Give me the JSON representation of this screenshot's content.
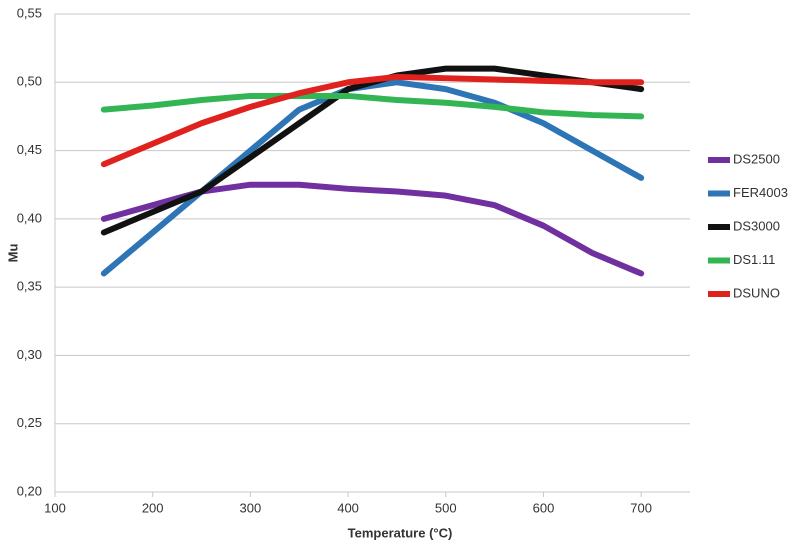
{
  "chart_data": {
    "type": "line",
    "x_label": "Temperature (°C)",
    "y_label": "Mu",
    "x": [
      150,
      200,
      250,
      300,
      350,
      400,
      450,
      500,
      550,
      600,
      650,
      700
    ],
    "series": [
      {
        "name": "DS2500",
        "color": "#7030a0",
        "values": [
          0.4,
          0.41,
          0.42,
          0.425,
          0.425,
          0.422,
          0.42,
          0.417,
          0.41,
          0.395,
          0.375,
          0.36
        ]
      },
      {
        "name": "FER4003",
        "color": "#2e75b6",
        "values": [
          0.36,
          0.39,
          0.42,
          0.45,
          0.48,
          0.495,
          0.5,
          0.495,
          0.485,
          0.47,
          0.45,
          0.43
        ]
      },
      {
        "name": "DS3000",
        "color": "#111111",
        "values": [
          0.39,
          0.405,
          0.42,
          0.445,
          0.47,
          0.495,
          0.505,
          0.51,
          0.51,
          0.505,
          0.5,
          0.495
        ]
      },
      {
        "name": "DS1.11",
        "color": "#34b553",
        "values": [
          0.48,
          0.483,
          0.487,
          0.49,
          0.49,
          0.49,
          0.487,
          0.485,
          0.482,
          0.478,
          0.476,
          0.475
        ]
      },
      {
        "name": "DSUNO",
        "color": "#e0221f",
        "values": [
          0.44,
          0.455,
          0.47,
          0.482,
          0.492,
          0.5,
          0.504,
          0.503,
          0.502,
          0.501,
          0.5,
          0.5
        ]
      }
    ],
    "xlim": [
      100,
      750
    ],
    "xticks": [
      100,
      200,
      300,
      400,
      500,
      600,
      700
    ],
    "ylim": [
      0.2,
      0.55
    ],
    "yticks": [
      {
        "value": 0.2,
        "label": "0,20"
      },
      {
        "value": 0.25,
        "label": "0,25"
      },
      {
        "value": 0.3,
        "label": "0,30"
      },
      {
        "value": 0.35,
        "label": "0,35"
      },
      {
        "value": 0.4,
        "label": "0,40"
      },
      {
        "value": 0.45,
        "label": "0,45"
      },
      {
        "value": 0.5,
        "label": "0,50"
      },
      {
        "value": 0.55,
        "label": "0,55"
      }
    ],
    "grid": true,
    "legend": "right"
  }
}
